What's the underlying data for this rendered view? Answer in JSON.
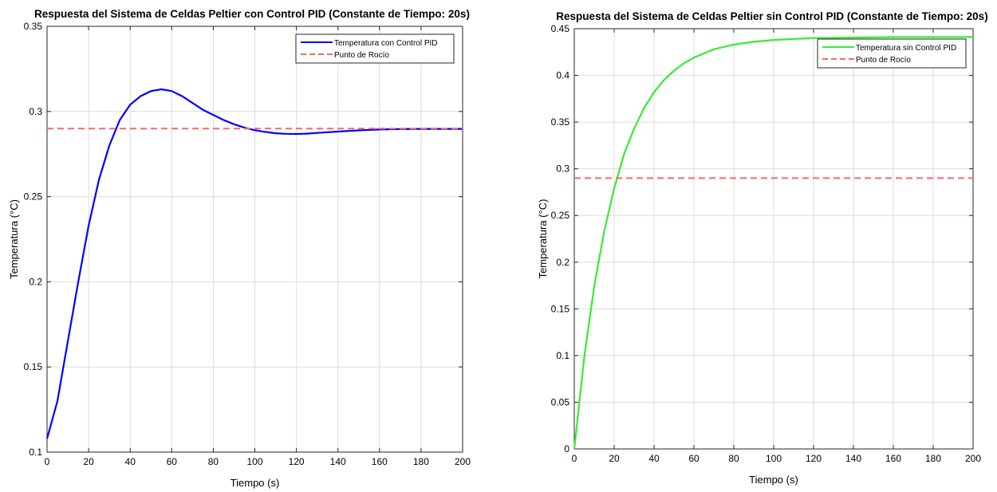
{
  "chart_data": [
    {
      "type": "line",
      "title": "Respuesta del Sistema de Celdas Peltier con Control PID (Constante de Tiempo: 20s)",
      "xlabel": "Tiempo (s)",
      "ylabel": "Temperatura (°C)",
      "xlim": [
        0,
        200
      ],
      "ylim": [
        0.1,
        0.35
      ],
      "xticks": [
        0,
        20,
        40,
        60,
        80,
        100,
        120,
        140,
        160,
        180,
        200
      ],
      "xtick_labels": [
        "0",
        "20",
        "40",
        "60",
        "80",
        "100",
        "120",
        "140",
        "160",
        "180",
        "200"
      ],
      "yticks": [
        0.1,
        0.15,
        0.2,
        0.25,
        0.3,
        0.35
      ],
      "ytick_labels": [
        "0.1",
        "0.15",
        "0.2",
        "0.25",
        "0.3",
        "0.35"
      ],
      "grid": true,
      "legend_position": "top-right",
      "series": [
        {
          "name": "Temperatura con Control PID",
          "color": "#0000ff",
          "style": "solid",
          "x": [
            0,
            5,
            10,
            15,
            20,
            25,
            30,
            35,
            40,
            45,
            50,
            55,
            60,
            65,
            70,
            75,
            80,
            85,
            90,
            95,
            100,
            105,
            110,
            115,
            120,
            125,
            130,
            140,
            150,
            160,
            170,
            180,
            190,
            200
          ],
          "y": [
            0.108,
            0.13,
            0.165,
            0.2,
            0.233,
            0.26,
            0.28,
            0.295,
            0.304,
            0.309,
            0.312,
            0.313,
            0.312,
            0.309,
            0.305,
            0.301,
            0.298,
            0.295,
            0.2925,
            0.2905,
            0.289,
            0.288,
            0.2872,
            0.2869,
            0.2868,
            0.287,
            0.2874,
            0.2882,
            0.2889,
            0.2894,
            0.2897,
            0.2898,
            0.2898,
            0.2898
          ]
        },
        {
          "name": "Punto de Rocío",
          "color": "#ff6666",
          "style": "dashed",
          "x": [
            0,
            200
          ],
          "y": [
            0.29,
            0.29
          ]
        }
      ]
    },
    {
      "type": "line",
      "title": "Respuesta del Sistema de Celdas Peltier sin Control PID (Constante de Tiempo: 20s)",
      "xlabel": "Tiempo (s)",
      "ylabel": "Temperatura (°C)",
      "xlim": [
        0,
        200
      ],
      "ylim": [
        0,
        0.45
      ],
      "xticks": [
        0,
        20,
        40,
        60,
        80,
        100,
        120,
        140,
        160,
        180,
        200
      ],
      "xtick_labels": [
        "0",
        "20",
        "40",
        "60",
        "80",
        "100",
        "120",
        "140",
        "160",
        "180",
        "200"
      ],
      "yticks": [
        0,
        0.05,
        0.1,
        0.15,
        0.2,
        0.25,
        0.3,
        0.35,
        0.4,
        0.45
      ],
      "ytick_labels": [
        "0",
        "0.05",
        "0.1",
        "0.15",
        "0.2",
        "0.25",
        "0.3",
        "0.35",
        "0.4",
        "0.45"
      ],
      "grid": true,
      "legend_position": "top-right",
      "series": [
        {
          "name": "Temperatura sin Control PID",
          "color": "#33ee33",
          "style": "solid",
          "x": [
            0,
            5,
            10,
            15,
            20,
            25,
            30,
            35,
            40,
            45,
            50,
            55,
            60,
            70,
            80,
            90,
            100,
            110,
            120,
            140,
            160,
            180,
            200
          ],
          "y": [
            0,
            0.098,
            0.174,
            0.233,
            0.279,
            0.316,
            0.343,
            0.365,
            0.382,
            0.395,
            0.405,
            0.413,
            0.419,
            0.428,
            0.433,
            0.436,
            0.438,
            0.439,
            0.44,
            0.4405,
            0.441,
            0.441,
            0.441
          ]
        },
        {
          "name": "Punto de Rocío",
          "color": "#ff6666",
          "style": "dashed",
          "x": [
            0,
            200
          ],
          "y": [
            0.29,
            0.29
          ]
        }
      ]
    }
  ]
}
